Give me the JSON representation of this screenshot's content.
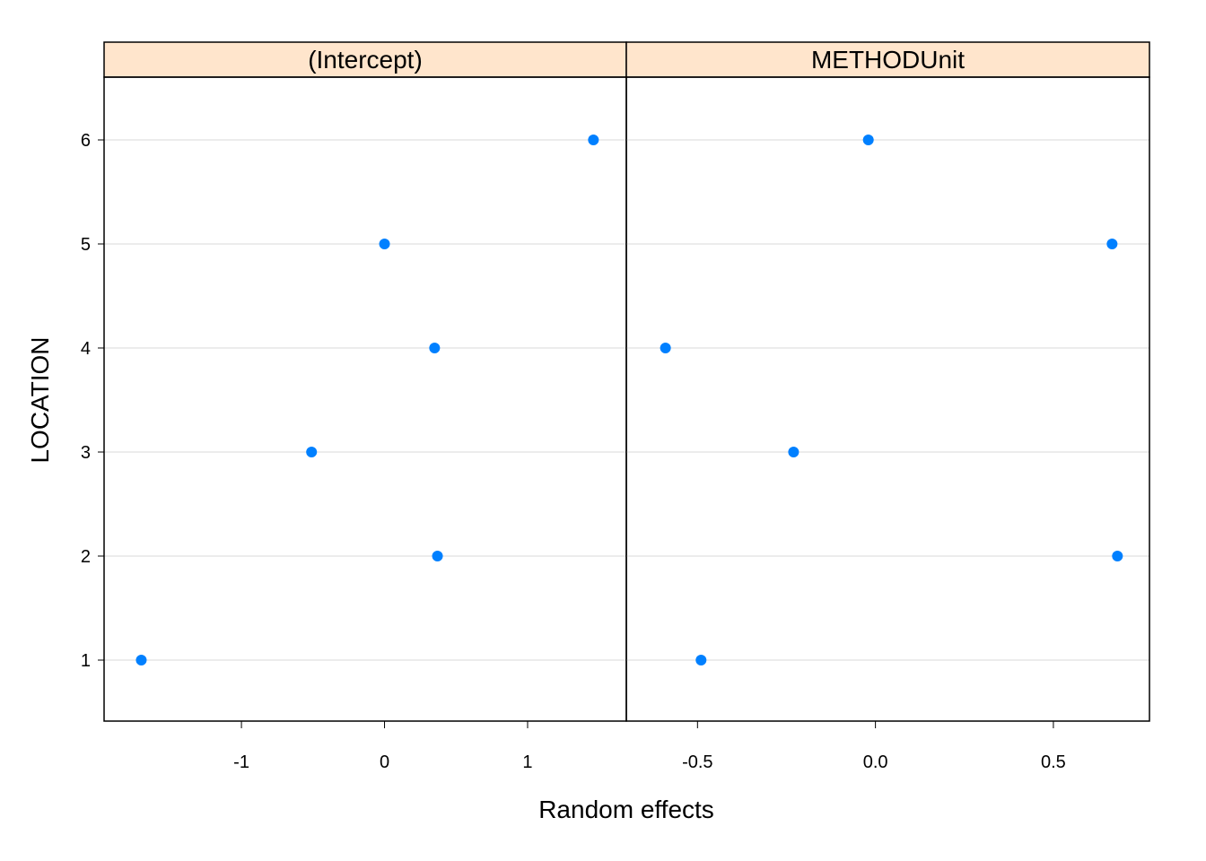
{
  "chart_data": {
    "type": "scatter",
    "subtype": "lattice-dotplot",
    "xlabel": "Random effects",
    "ylabel": "LOCATION",
    "y_categories": [
      "1",
      "2",
      "3",
      "4",
      "5",
      "6"
    ],
    "grid": "horizontal",
    "strip_color": "#FFE5CC",
    "point_color": "#0080FF",
    "gridline_color": "#E6E6E6",
    "panels": [
      {
        "strip_label": "(Intercept)",
        "xlim": [
          -1.96,
          1.69
        ],
        "x_ticks": [
          -1,
          0,
          1
        ],
        "x_tick_labels": [
          "-1",
          "0",
          "1"
        ],
        "points": [
          {
            "location": "1",
            "value": -1.7
          },
          {
            "location": "2",
            "value": 0.37
          },
          {
            "location": "3",
            "value": -0.51
          },
          {
            "location": "4",
            "value": 0.35
          },
          {
            "location": "5",
            "value": 0.0
          },
          {
            "location": "6",
            "value": 1.46
          }
        ]
      },
      {
        "strip_label": "METHODUnit",
        "xlim": [
          -0.7,
          0.77
        ],
        "x_ticks": [
          -0.5,
          0.0,
          0.5
        ],
        "x_tick_labels": [
          "-0.5",
          "0.0",
          "0.5"
        ],
        "points": [
          {
            "location": "1",
            "value": -0.49
          },
          {
            "location": "2",
            "value": 0.68
          },
          {
            "location": "3",
            "value": -0.23
          },
          {
            "location": "4",
            "value": -0.59
          },
          {
            "location": "5",
            "value": 0.665
          },
          {
            "location": "6",
            "value": -0.02
          }
        ]
      }
    ]
  }
}
